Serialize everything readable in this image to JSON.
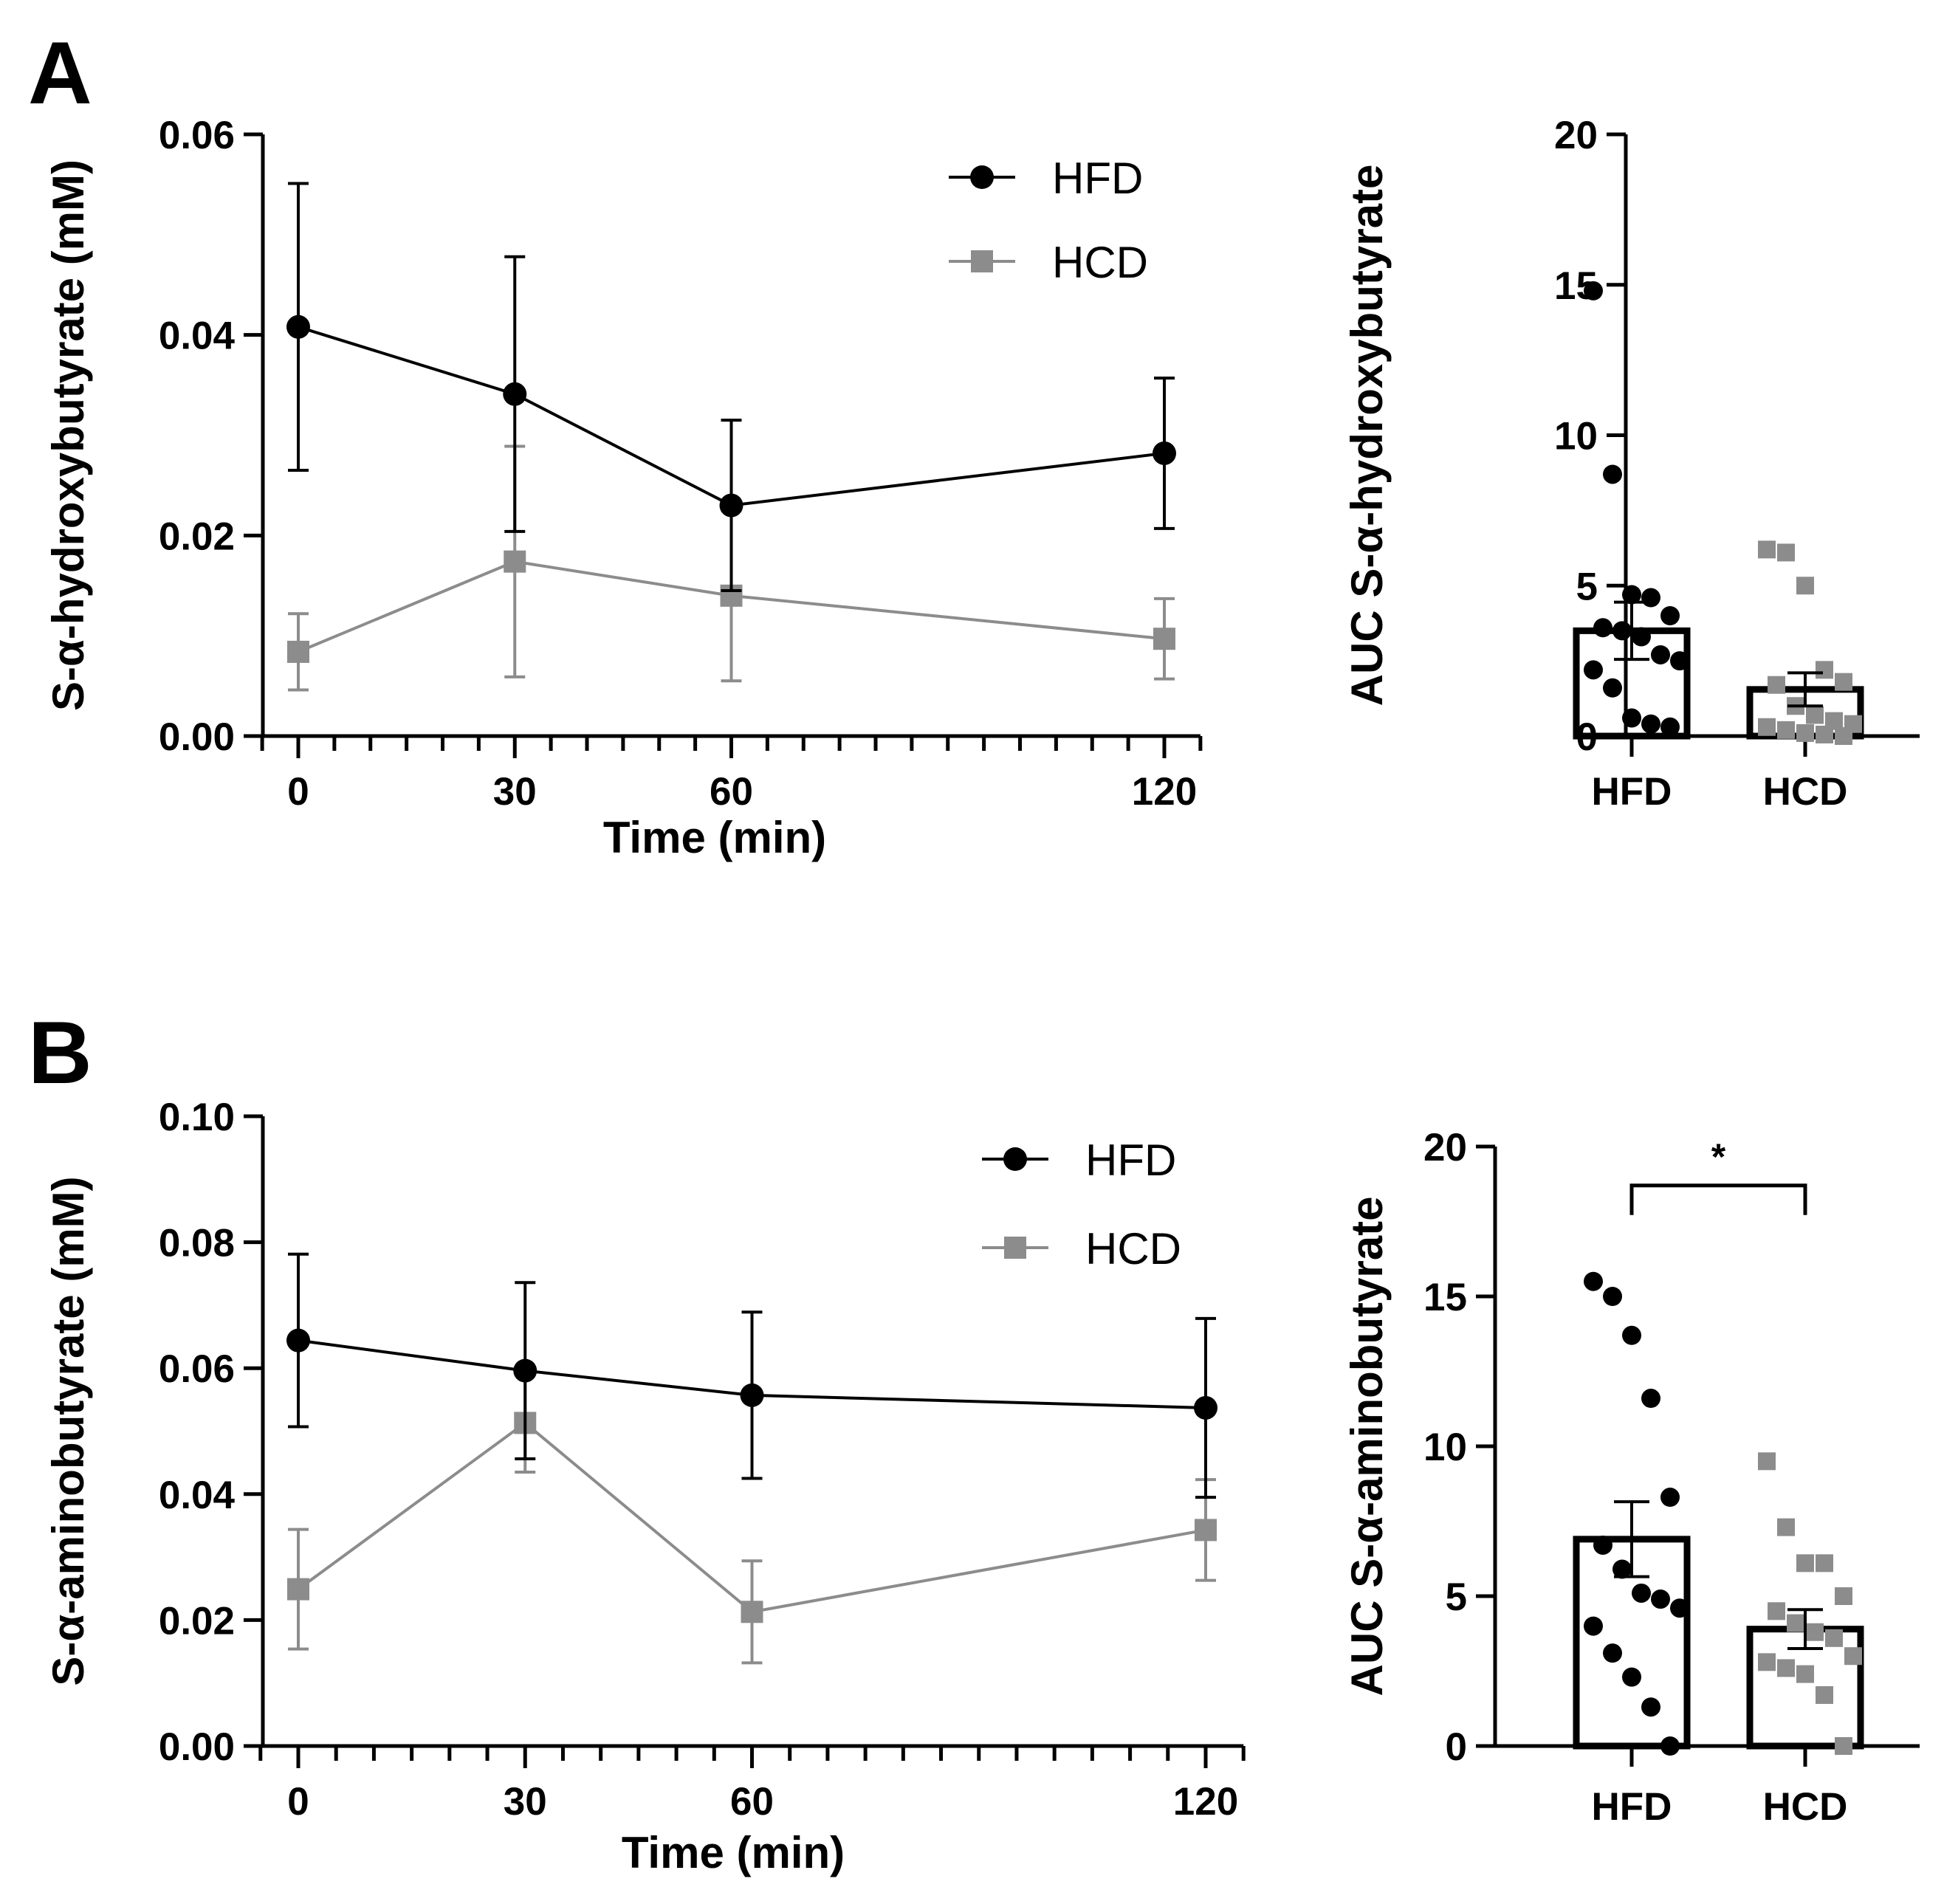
{
  "figure": {
    "panels": [
      {
        "id": "A",
        "label": "A"
      },
      {
        "id": "B",
        "label": "B"
      }
    ]
  },
  "colors": {
    "HFD": "#000000",
    "HCD": "#8c8c8c",
    "axis": "#000000"
  },
  "chart_data": [
    {
      "type": "line",
      "panel": "A",
      "xlabel": "Time (min)",
      "ylabel": "S-α-hydroxybutyrate (mM)",
      "xlim": [
        -5,
        125
      ],
      "ylim": [
        0,
        0.06
      ],
      "x_ticks": [
        0,
        30,
        60,
        120
      ],
      "x_minor_step": 5,
      "y_ticks": [
        0,
        0.02,
        0.04,
        0.06
      ],
      "y_tick_labels": [
        "0.00",
        "0.02",
        "0.04",
        "0.06"
      ],
      "legend": "top-right",
      "grid": false,
      "series": [
        {
          "name": "HFD",
          "marker": "circle",
          "x": [
            0,
            30,
            60,
            120
          ],
          "y": [
            0.0408,
            0.0341,
            0.023,
            0.0282
          ],
          "err": [
            0.0143,
            0.0137,
            0.0085,
            0.0075
          ]
        },
        {
          "name": "HCD",
          "marker": "square",
          "x": [
            0,
            30,
            60,
            120
          ],
          "y": [
            0.0084,
            0.0174,
            0.014,
            0.0097
          ],
          "err": [
            0.0038,
            0.0115,
            0.0085,
            0.004
          ]
        }
      ]
    },
    {
      "type": "bar",
      "panel": "A",
      "ylabel": "AUC S-α-hydroxybutyrate",
      "categories": [
        "HFD",
        "HCD"
      ],
      "ylim": [
        0,
        20
      ],
      "y_ticks": [
        0,
        5,
        10,
        15,
        20
      ],
      "y_tick_labels": [
        "0",
        "5",
        "10",
        "15",
        "20"
      ],
      "values": [
        3.5,
        1.55
      ],
      "sem": [
        0.95,
        0.55
      ],
      "grid": false,
      "points": [
        [
          14.8,
          8.7,
          4.7,
          4.6,
          4.0,
          3.6,
          3.5,
          3.3,
          2.7,
          2.5,
          2.2,
          1.6,
          0.6,
          0.4,
          0.3
        ],
        [
          6.2,
          6.1,
          5.0,
          2.2,
          1.8,
          1.7,
          1.0,
          0.7,
          0.5,
          0.4,
          0.3,
          0.2,
          0.1,
          0.05,
          0.0
        ]
      ]
    },
    {
      "type": "line",
      "panel": "B",
      "xlabel": "Time (min)",
      "ylabel": "S-α-aminobutyrate (mM)",
      "xlim": [
        -5,
        125
      ],
      "ylim": [
        0,
        0.1
      ],
      "x_ticks": [
        0,
        30,
        60,
        120
      ],
      "x_minor_step": 5,
      "y_ticks": [
        0,
        0.02,
        0.04,
        0.06,
        0.08,
        0.1
      ],
      "y_tick_labels": [
        "0.00",
        "0.02",
        "0.04",
        "0.06",
        "0.08",
        "0.10"
      ],
      "legend": "top-right",
      "grid": false,
      "series": [
        {
          "name": "HFD",
          "marker": "circle",
          "x": [
            0,
            30,
            60,
            120
          ],
          "y": [
            0.0644,
            0.0596,
            0.0557,
            0.0537
          ],
          "err": [
            0.0137,
            0.014,
            0.0132,
            0.0142
          ]
        },
        {
          "name": "HCD",
          "marker": "square",
          "x": [
            0,
            30,
            60,
            120
          ],
          "y": [
            0.0249,
            0.0513,
            0.0213,
            0.0343
          ],
          "err": [
            0.0095,
            0.0078,
            0.0081,
            0.008
          ]
        }
      ]
    },
    {
      "type": "bar",
      "panel": "B",
      "ylabel": "AUC S-α-aminobutyrate",
      "categories": [
        "HFD",
        "HCD"
      ],
      "ylim": [
        0,
        20
      ],
      "y_ticks": [
        0,
        5,
        10,
        15,
        20
      ],
      "y_tick_labels": [
        "0",
        "5",
        "10",
        "15",
        "20"
      ],
      "values": [
        6.9,
        3.9
      ],
      "sem": [
        1.25,
        0.65
      ],
      "grid": false,
      "significance": {
        "from": "HFD",
        "to": "HCD",
        "label": "*",
        "y": 18.7
      },
      "points": [
        [
          15.5,
          15.0,
          13.7,
          11.6,
          8.3,
          6.7,
          5.9,
          5.1,
          4.9,
          4.6,
          4.0,
          3.1,
          2.3,
          1.3,
          0.0
        ],
        [
          9.5,
          7.3,
          6.1,
          6.1,
          5.0,
          4.5,
          4.1,
          3.8,
          3.6,
          3.0,
          2.8,
          2.6,
          2.4,
          1.7,
          0.0
        ]
      ]
    }
  ]
}
